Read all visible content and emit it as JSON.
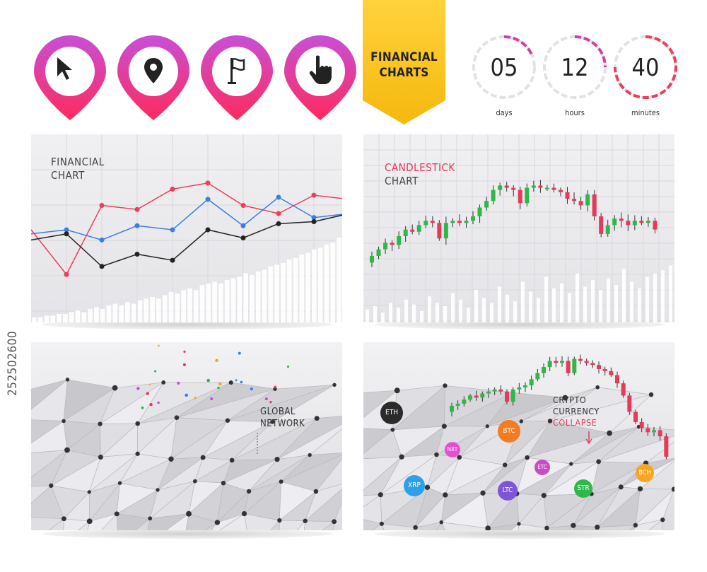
{
  "pins": [
    {
      "icon": "cursor-arrow-icon"
    },
    {
      "icon": "location-pin-icon"
    },
    {
      "icon": "flag-icon"
    },
    {
      "icon": "pointing-hand-icon"
    }
  ],
  "banner": {
    "line1": "FINANCIAL",
    "line2": "CHARTS",
    "color": "#ffd23c"
  },
  "countdown": [
    {
      "value": "05",
      "unit": "days"
    },
    {
      "value": "12",
      "unit": "hours"
    },
    {
      "value": "40",
      "unit": "minutes"
    }
  ],
  "colors": {
    "pin_gradient_top": "#c84fd6",
    "pin_gradient_bottom": "#ff2a5c",
    "bull": "#2eb84a",
    "bear": "#e53a5a",
    "line_red": "#ee3c5a",
    "line_blue": "#3a7ee0",
    "line_black": "#222222"
  },
  "panel1": {
    "title_line1": "FINANCIAL",
    "title_line2": "CHART"
  },
  "panel2": {
    "title_line1": "CANDLESTICK",
    "title_line2": "CHART"
  },
  "panel3": {
    "title_line1": "GLOBAL",
    "title_line2": "NETWORK"
  },
  "panel4": {
    "title_line1": "CRYPTO",
    "title_line2": "CURRENCY",
    "title_line3": "COLLAPSE"
  },
  "coins": [
    {
      "label": "ETH",
      "color": "#2b2b2b"
    },
    {
      "label": "BTC",
      "color": "#f27c1f"
    },
    {
      "label": "NXT",
      "color": "#e64fd3"
    },
    {
      "label": "XRP",
      "color": "#2ea0e8"
    },
    {
      "label": "LTC",
      "color": "#7d56d8"
    },
    {
      "label": "ETC",
      "color": "#c94cc6"
    },
    {
      "label": "STR",
      "color": "#2fb84a"
    },
    {
      "label": "BCH",
      "color": "#f5a623"
    }
  ],
  "watermark": "252502600",
  "chart_data": [
    {
      "type": "line",
      "series": [
        {
          "color": "#ee3c5a",
          "values": [
            40,
            18,
            52,
            50,
            60,
            63,
            52,
            48,
            57,
            55
          ]
        },
        {
          "color": "#3a7ee0",
          "values": [
            38,
            40,
            35,
            42,
            40,
            55,
            42,
            56,
            46,
            48
          ]
        },
        {
          "color": "#222222",
          "values": [
            35,
            38,
            22,
            28,
            25,
            40,
            36,
            43,
            44,
            48
          ]
        }
      ],
      "bars": [
        3,
        3,
        4,
        4,
        5,
        5,
        6,
        7,
        6,
        8,
        9,
        8,
        10,
        11,
        10,
        12,
        11,
        13,
        14,
        15,
        14,
        16,
        18,
        17,
        19,
        20,
        19,
        22,
        23,
        24,
        23,
        25,
        26,
        27,
        29,
        28,
        30,
        31,
        33,
        34,
        35,
        37,
        38,
        40,
        41,
        43,
        44,
        46,
        47,
        50
      ]
    },
    {
      "type": "candlestick",
      "candles": [
        {
          "o": 41,
          "c": 44
        },
        {
          "o": 44,
          "c": 47
        },
        {
          "o": 47,
          "c": 50
        },
        {
          "o": 50,
          "c": 49
        },
        {
          "o": 49,
          "c": 53
        },
        {
          "o": 53,
          "c": 56
        },
        {
          "o": 56,
          "c": 55
        },
        {
          "o": 55,
          "c": 58
        },
        {
          "o": 58,
          "c": 60
        },
        {
          "o": 60,
          "c": 59
        },
        {
          "o": 59,
          "c": 52
        },
        {
          "o": 52,
          "c": 59
        },
        {
          "o": 59,
          "c": 60
        },
        {
          "o": 60,
          "c": 59
        },
        {
          "o": 59,
          "c": 60
        },
        {
          "o": 60,
          "c": 62
        },
        {
          "o": 62,
          "c": 66
        },
        {
          "o": 66,
          "c": 69
        },
        {
          "o": 69,
          "c": 74
        },
        {
          "o": 74,
          "c": 76
        },
        {
          "o": 76,
          "c": 75
        },
        {
          "o": 75,
          "c": 74
        },
        {
          "o": 74,
          "c": 68
        },
        {
          "o": 68,
          "c": 75
        },
        {
          "o": 75,
          "c": 76
        },
        {
          "o": 76,
          "c": 75
        },
        {
          "o": 75,
          "c": 75
        },
        {
          "o": 75,
          "c": 74
        },
        {
          "o": 74,
          "c": 73
        },
        {
          "o": 73,
          "c": 70
        },
        {
          "o": 70,
          "c": 69
        },
        {
          "o": 69,
          "c": 67
        },
        {
          "o": 67,
          "c": 72
        },
        {
          "o": 72,
          "c": 62
        },
        {
          "o": 62,
          "c": 54
        },
        {
          "o": 54,
          "c": 58
        },
        {
          "o": 58,
          "c": 61
        },
        {
          "o": 61,
          "c": 60
        },
        {
          "o": 60,
          "c": 58
        },
        {
          "o": 58,
          "c": 60
        },
        {
          "o": 60,
          "c": 59
        },
        {
          "o": 59,
          "c": 60
        },
        {
          "o": 60,
          "c": 56
        }
      ],
      "volume": [
        8,
        10,
        6,
        12,
        9,
        14,
        11,
        7,
        16,
        12,
        10,
        18,
        14,
        9,
        20,
        15,
        12,
        22,
        17,
        13,
        25,
        19,
        15,
        28,
        21,
        24,
        18,
        30,
        22,
        26,
        20,
        27,
        23,
        33,
        25,
        21,
        28,
        30,
        32,
        35
      ]
    },
    {
      "type": "candlestick",
      "candles": [
        {
          "o": 30,
          "c": 33
        },
        {
          "o": 33,
          "c": 34
        },
        {
          "o": 34,
          "c": 36
        },
        {
          "o": 36,
          "c": 38
        },
        {
          "o": 38,
          "c": 37
        },
        {
          "o": 37,
          "c": 39
        },
        {
          "o": 39,
          "c": 40
        },
        {
          "o": 40,
          "c": 41
        },
        {
          "o": 41,
          "c": 40
        },
        {
          "o": 40,
          "c": 35
        },
        {
          "o": 35,
          "c": 41
        },
        {
          "o": 41,
          "c": 42
        },
        {
          "o": 42,
          "c": 43
        },
        {
          "o": 43,
          "c": 46
        },
        {
          "o": 46,
          "c": 49
        },
        {
          "o": 49,
          "c": 52
        },
        {
          "o": 52,
          "c": 55
        },
        {
          "o": 55,
          "c": 54
        },
        {
          "o": 54,
          "c": 55
        },
        {
          "o": 55,
          "c": 49
        },
        {
          "o": 49,
          "c": 56
        },
        {
          "o": 56,
          "c": 55
        },
        {
          "o": 55,
          "c": 54
        },
        {
          "o": 54,
          "c": 53
        },
        {
          "o": 53,
          "c": 51
        },
        {
          "o": 51,
          "c": 50
        },
        {
          "o": 50,
          "c": 48
        },
        {
          "o": 48,
          "c": 44
        },
        {
          "o": 44,
          "c": 38
        },
        {
          "o": 38,
          "c": 30
        },
        {
          "o": 30,
          "c": 25
        },
        {
          "o": 25,
          "c": 22
        },
        {
          "o": 22,
          "c": 20
        },
        {
          "o": 20,
          "c": 21
        },
        {
          "o": 21,
          "c": 18
        },
        {
          "o": 18,
          "c": 8
        }
      ]
    }
  ]
}
